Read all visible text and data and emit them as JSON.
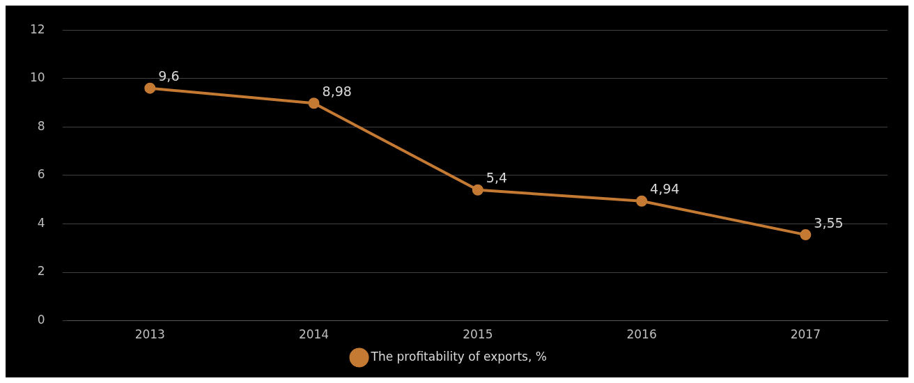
{
  "chart_data": {
    "type": "line",
    "categories": [
      "2013",
      "2014",
      "2015",
      "2016",
      "2017"
    ],
    "series": [
      {
        "name": "The profitability of exports, %",
        "color": "#c47a33",
        "values": [
          9.6,
          8.98,
          5.4,
          4.94,
          3.55
        ],
        "value_labels": [
          "9,6",
          "8,98",
          "5,4",
          "4,94",
          "3,55"
        ]
      }
    ],
    "ylim": [
      0,
      12
    ],
    "yticks": [
      0,
      2,
      4,
      6,
      8,
      10,
      12
    ],
    "grid": "y",
    "legend": "bottom",
    "marker": "circle",
    "line_style": "solid"
  }
}
